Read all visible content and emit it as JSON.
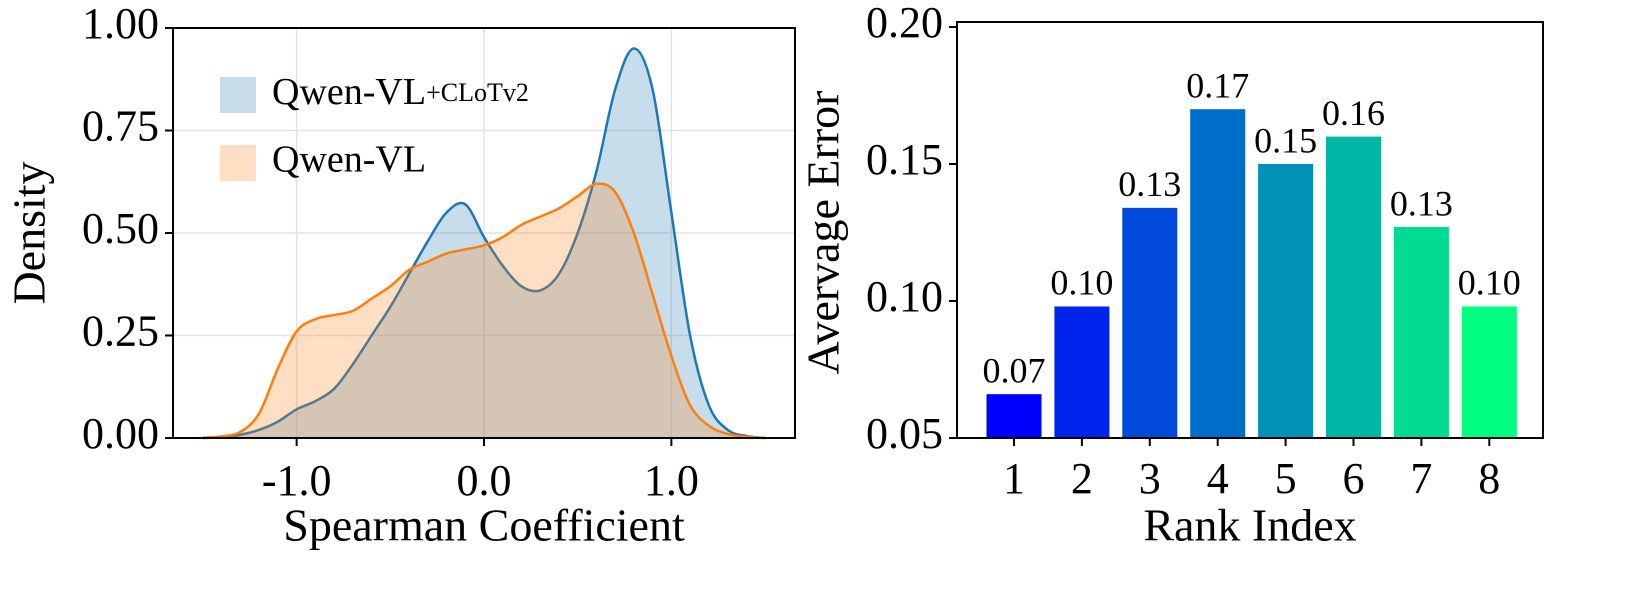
{
  "chart_data": [
    {
      "type": "area",
      "xlabel": "Spearman Coefficient",
      "ylabel": "Density",
      "x": [
        -1.5,
        -1.4,
        -1.3,
        -1.2,
        -1.1,
        -1.0,
        -0.9,
        -0.8,
        -0.7,
        -0.6,
        -0.5,
        -0.4,
        -0.3,
        -0.2,
        -0.1,
        0.0,
        0.1,
        0.2,
        0.3,
        0.4,
        0.5,
        0.6,
        0.7,
        0.8,
        0.9,
        1.0,
        1.1,
        1.2,
        1.3,
        1.4,
        1.5
      ],
      "series": [
        {
          "name": "Qwen-VL+CLoTv2",
          "color": "#1f77b4",
          "values": [
            0,
            0.002,
            0.008,
            0.02,
            0.04,
            0.07,
            0.09,
            0.12,
            0.18,
            0.25,
            0.32,
            0.4,
            0.48,
            0.55,
            0.57,
            0.49,
            0.42,
            0.37,
            0.36,
            0.4,
            0.5,
            0.65,
            0.85,
            0.95,
            0.85,
            0.55,
            0.25,
            0.08,
            0.02,
            0.005,
            0
          ]
        },
        {
          "name": "Qwen-VL",
          "color": "#ff7f0e",
          "values": [
            0.001,
            0.004,
            0.015,
            0.06,
            0.17,
            0.26,
            0.29,
            0.3,
            0.31,
            0.34,
            0.37,
            0.41,
            0.43,
            0.45,
            0.46,
            0.47,
            0.49,
            0.52,
            0.54,
            0.56,
            0.59,
            0.62,
            0.6,
            0.5,
            0.35,
            0.2,
            0.08,
            0.03,
            0.01,
            0.003,
            0
          ]
        }
      ],
      "xlim": [
        -1.66,
        1.66
      ],
      "xticks": [
        {
          "value": -1,
          "label": "-1.0"
        },
        {
          "value": 0,
          "label": "0.0"
        },
        {
          "value": 1,
          "label": "1.0"
        }
      ],
      "ylim": [
        0,
        1
      ],
      "yticks": [
        {
          "value": 0,
          "label": "0.00"
        },
        {
          "value": 0.25,
          "label": "0.25"
        },
        {
          "value": 0.5,
          "label": "0.50"
        },
        {
          "value": 0.75,
          "label": "0.75"
        },
        {
          "value": 1,
          "label": "1.00"
        }
      ],
      "grid": true,
      "legend": "upper left"
    },
    {
      "type": "bar",
      "xlabel": "Rank Index",
      "ylabel": "Avervage Error",
      "categories": [
        "1",
        "2",
        "3",
        "4",
        "5",
        "6",
        "7",
        "8"
      ],
      "values": [
        0.066,
        0.098,
        0.134,
        0.17,
        0.15,
        0.16,
        0.127,
        0.098
      ],
      "value_labels": [
        "0.07",
        "0.10",
        "0.13",
        "0.17",
        "0.15",
        "0.16",
        "0.13",
        "0.10"
      ],
      "colors": [
        "#0000ff",
        "#0024ed",
        "#0049db",
        "#006dc8",
        "#0092b6",
        "#00b6a4",
        "#00db92",
        "#00ff80"
      ],
      "ylim": [
        0.05,
        0.2
      ],
      "yticks": [
        0.05,
        {
          "value": 0.1,
          "label": "0.10"
        },
        0.15,
        {
          "value": 0.2,
          "label": "0.20"
        }
      ],
      "grid": false
    }
  ]
}
